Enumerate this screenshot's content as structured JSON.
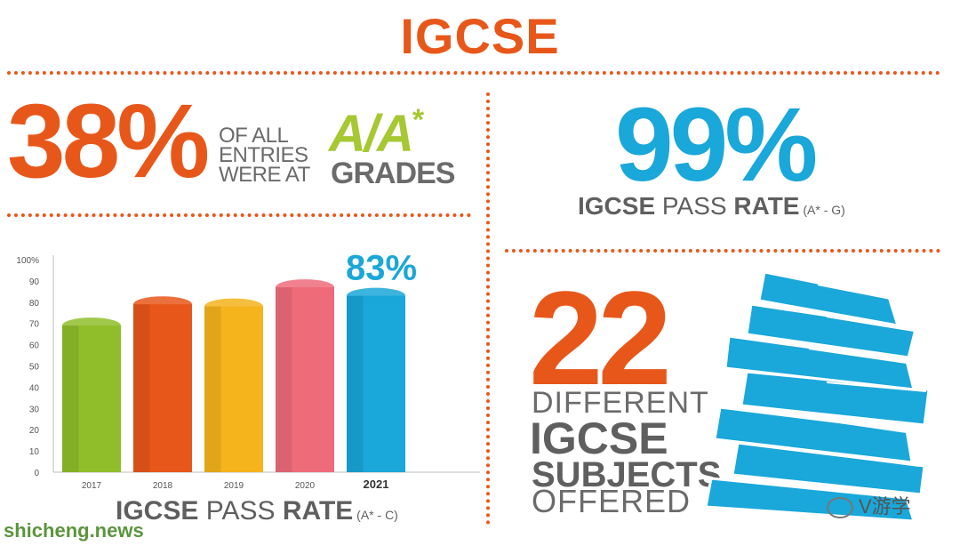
{
  "title": "IGCSE",
  "aa_stat": {
    "value": "38%",
    "text_lines": [
      "OF ALL",
      "ENTRIES",
      "WERE AT"
    ],
    "grade": "A/A",
    "grade_star": "*",
    "grades_word": "GRADES"
  },
  "pass_99": {
    "value": "99%",
    "label_bold1": "IGCSE",
    "label_thin": " PASS ",
    "label_bold2": "RATE",
    "label_range": " (A* - G)"
  },
  "subjects": {
    "value": "22",
    "line1": "DIFFERENT",
    "line2": "IGCSE",
    "line3": "SUBJECTS",
    "line4": "OFFERED"
  },
  "chart_caption": {
    "label_bold1": "IGCSE",
    "label_thin": " PASS ",
    "label_bold2": "RATE",
    "label_range": " (A* - C)"
  },
  "chart_data": {
    "type": "bar",
    "categories": [
      "2017",
      "2018",
      "2019",
      "2020",
      "2021"
    ],
    "values": [
      69,
      79,
      78,
      87,
      83
    ],
    "highlight_label": "83%",
    "y_ticks": [
      "0",
      "10",
      "20",
      "30",
      "40",
      "50",
      "60",
      "70",
      "80",
      "90",
      "100%"
    ],
    "ylim": [
      0,
      100
    ],
    "colors": [
      "#8fbe2a",
      "#e8571a",
      "#f5b31c",
      "#ee6b7a",
      "#1aa7d9"
    ],
    "grid": false,
    "legend": "none"
  },
  "watermarks": {
    "left": "shicheng.news",
    "right": "V游学"
  },
  "colors": {
    "orange": "#e8571a",
    "blue": "#1aa7d9",
    "green": "#a6c832",
    "gray": "#6b6b6b"
  }
}
